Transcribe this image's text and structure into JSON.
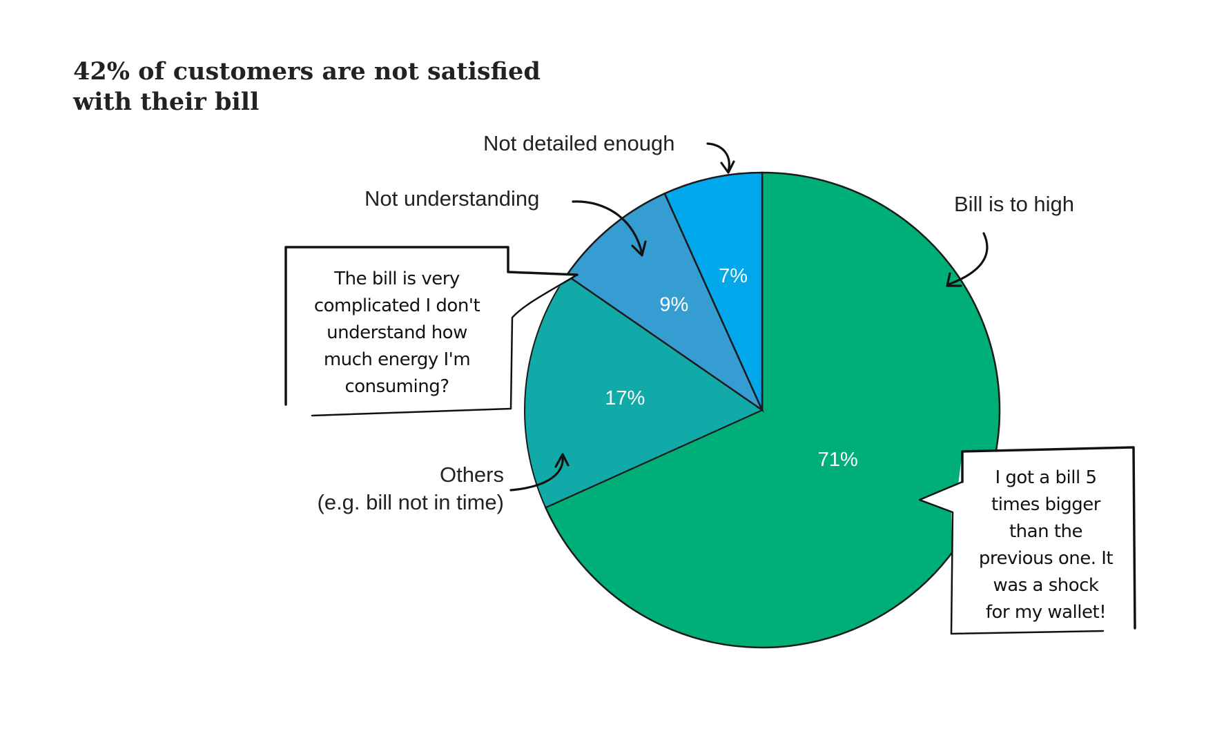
{
  "title_lines": [
    "42% of customers are not satisfied",
    "with their bill"
  ],
  "chart_data": {
    "type": "pie",
    "title": "42% of customers are not satisfied with their bill",
    "categories": [
      "Bill is to high",
      "Others\n(e.g. bill not in time)",
      "Not understanding",
      "Not detailed enough"
    ],
    "values": [
      71,
      17,
      9,
      7
    ],
    "value_labels": [
      "71%",
      "17%",
      "9%",
      "7%"
    ],
    "colors": [
      "#00ae78",
      "#12aaa8",
      "#359dd1",
      "#00a8eb"
    ]
  },
  "category_label_lines": {
    "bill_too_high": [
      "Bill is to high"
    ],
    "others": [
      "Others",
      "(e.g. bill not in time)"
    ],
    "not_understanding": [
      "Not understanding"
    ],
    "not_detailed": [
      "Not detailed enough"
    ]
  },
  "quotes": {
    "left": [
      "The bill is very",
      "complicated I don't",
      "understand how",
      "much energy I'm",
      "consuming?"
    ],
    "right": [
      "I got a bill 5",
      "times bigger",
      "than the",
      "previous one. It",
      "was a shock",
      "for my wallet!"
    ]
  }
}
